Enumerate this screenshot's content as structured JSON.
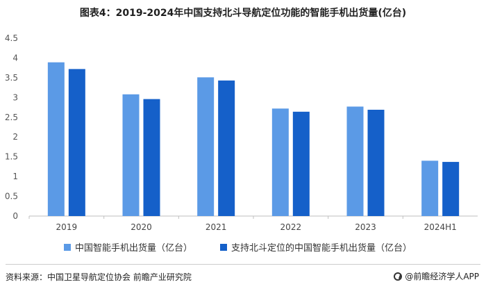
{
  "header": {
    "title": "图表4：2019-2024年中国支持北斗导航定位功能的智能手机出货量(亿台)"
  },
  "chart_data": {
    "type": "bar",
    "categories": [
      "2019",
      "2020",
      "2021",
      "2022",
      "2023",
      "2024H1"
    ],
    "series": [
      {
        "name": "中国智能手机出货量（亿台）",
        "color": "#5b9ae6",
        "values": [
          3.89,
          3.08,
          3.51,
          2.72,
          2.77,
          1.4
        ]
      },
      {
        "name": "支持北斗定位的中国智能手机出货量（亿台）",
        "color": "#1560c9",
        "values": [
          3.72,
          2.96,
          3.43,
          2.64,
          2.69,
          1.37
        ]
      }
    ],
    "ylim": [
      0,
      4.5
    ],
    "yticks": [
      "0",
      "0.5",
      "1",
      "1.5",
      "2",
      "2.5",
      "3",
      "3.5",
      "4",
      "4.5"
    ],
    "grid": false,
    "legend_position": "bottom"
  },
  "footer": {
    "source": "资料来源：中国卫星导航定位协会 前瞻产业研究院",
    "brand": "@前瞻经济学人APP"
  }
}
